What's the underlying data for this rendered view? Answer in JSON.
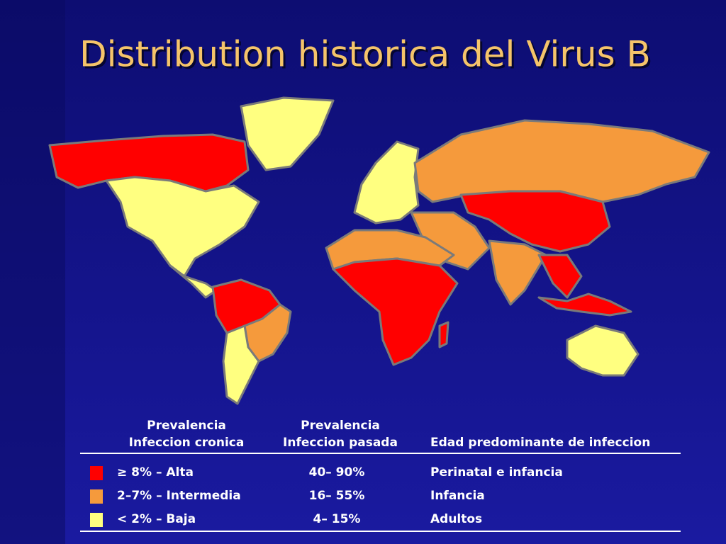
{
  "title": "Distribution historica del Virus B",
  "legend": {
    "headers": [
      {
        "lines": [
          "Prevalencia",
          "Infeccion cronica"
        ]
      },
      {
        "lines": [
          "Prevalencia",
          "Infeccion pasada"
        ]
      },
      {
        "lines": [
          "Edad predominante de infeccion"
        ]
      }
    ],
    "rows": [
      {
        "color": "#ff0000",
        "level": "≥ 8% –  Alta",
        "past": "40– 90%",
        "age": "Perinatal e infancia"
      },
      {
        "color": "#f59a3c",
        "level": "2–7% –  Intermedia",
        "past": "16– 55%",
        "age": "Infancia"
      },
      {
        "color": "#ffff80",
        "level": "< 2% –  Baja",
        "past": "4– 15%",
        "age": "Adultos"
      }
    ]
  }
}
